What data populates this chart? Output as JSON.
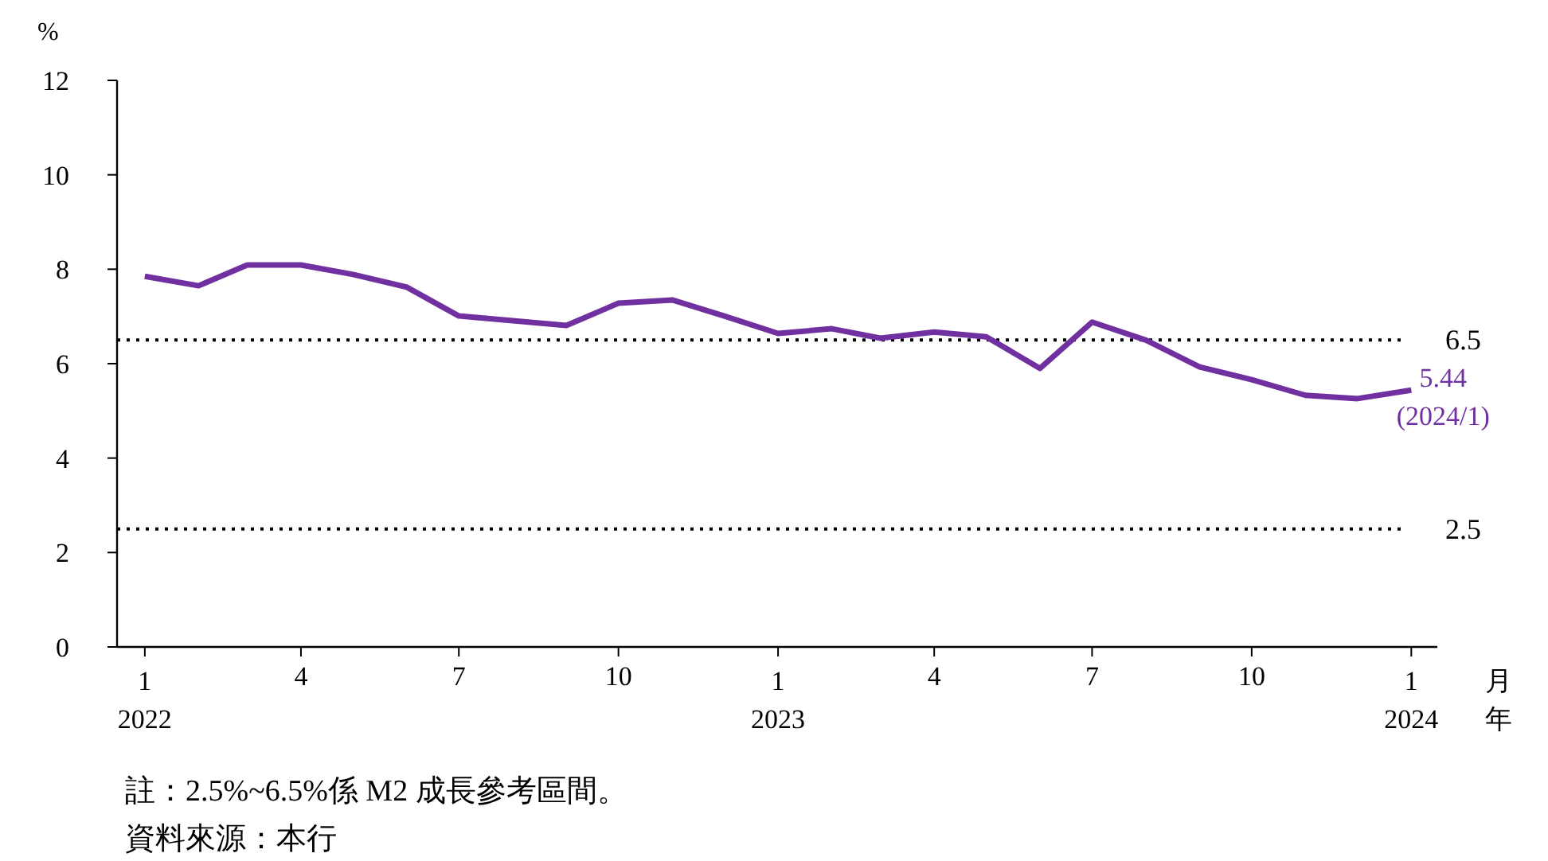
{
  "chart_data": {
    "type": "line",
    "ylabel": "%",
    "xlabel": "月年",
    "x": [
      "2022-01",
      "2022-02",
      "2022-03",
      "2022-04",
      "2022-05",
      "2022-06",
      "2022-07",
      "2022-08",
      "2022-09",
      "2022-10",
      "2022-11",
      "2022-12",
      "2023-01",
      "2023-02",
      "2023-03",
      "2023-04",
      "2023-05",
      "2023-06",
      "2023-07",
      "2023-08",
      "2023-09",
      "2023-10",
      "2023-11",
      "2023-12",
      "2024-01"
    ],
    "series": [
      {
        "color": "#7030a0",
        "values": [
          7.85,
          7.65,
          8.09,
          8.09,
          7.89,
          7.62,
          7.01,
          6.91,
          6.81,
          7.28,
          7.35,
          7.01,
          6.64,
          6.74,
          6.54,
          6.67,
          6.57,
          5.9,
          6.88,
          6.5,
          5.93,
          5.66,
          5.33,
          5.26,
          5.44
        ]
      }
    ],
    "xlim": [
      "2021-12-16",
      "2024-01-16"
    ],
    "xticks": [
      {
        "value": "2022-01",
        "label": "1\n2022"
      },
      {
        "value": "2022-04",
        "label": "4"
      },
      {
        "value": "2022-07",
        "label": "7"
      },
      {
        "value": "2022-10",
        "label": "10"
      },
      {
        "value": "2023-01",
        "label": "1\n2023"
      },
      {
        "value": "2023-04",
        "label": "4"
      },
      {
        "value": "2023-07",
        "label": "7"
      },
      {
        "value": "2023-10",
        "label": "10"
      },
      {
        "value": "2024-01",
        "label": "1\n2024"
      }
    ],
    "ylim": [
      0,
      12
    ],
    "yticks": [
      0,
      2,
      4,
      6,
      8,
      10,
      12
    ],
    "ref_lines": [
      {
        "axis": "y",
        "value": 6.5,
        "label": "6.5",
        "color": "#000000",
        "line_style": "dotted"
      },
      {
        "axis": "y",
        "value": 2.5,
        "label": "2.5",
        "color": "#000000",
        "line_style": "dotted"
      }
    ],
    "annotations": [
      {
        "text": "5.44\n(2024/1)",
        "x": "2024-01",
        "y": 5.44
      },
      "註：2.5%~6.5%係 M2 成長參考區間。",
      "資料來源：本行"
    ],
    "grid": false,
    "marker": "none",
    "line_style": "solid"
  }
}
